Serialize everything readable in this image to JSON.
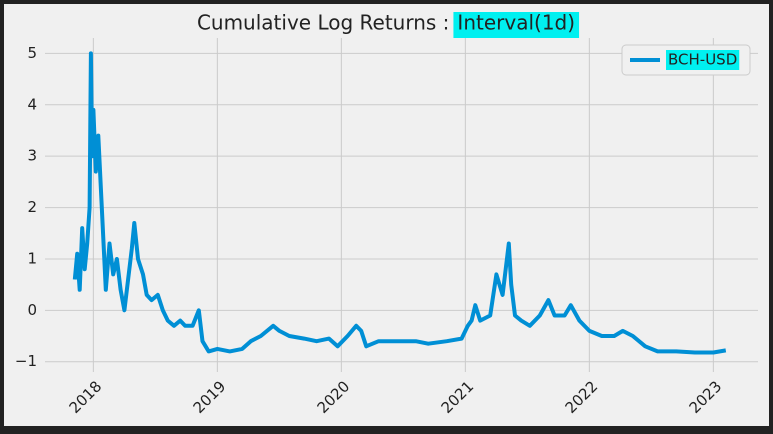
{
  "chart_data": {
    "type": "line",
    "title": "Cumulative Log Returns :",
    "title_badge": "Interval(1d)",
    "badge_color": "#00f0f0",
    "legend_position": "upper right",
    "grid": true,
    "xlim": [
      2017.61,
      2023.36
    ],
    "ylim": [
      -1.2,
      5.3
    ],
    "xticks": [
      2018,
      2019,
      2020,
      2021,
      2022,
      2023
    ],
    "yticks": [
      {
        "value": -1,
        "label": "−1"
      },
      0,
      1,
      2,
      3,
      4,
      5
    ],
    "x": [
      2017.85,
      2017.87,
      2017.89,
      2017.91,
      2017.93,
      2017.95,
      2017.97,
      2017.98,
      2017.99,
      2018.0,
      2018.02,
      2018.04,
      2018.06,
      2018.08,
      2018.1,
      2018.13,
      2018.16,
      2018.19,
      2018.22,
      2018.25,
      2018.28,
      2018.31,
      2018.33,
      2018.36,
      2018.4,
      2018.43,
      2018.47,
      2018.52,
      2018.56,
      2018.6,
      2018.65,
      2018.7,
      2018.74,
      2018.8,
      2018.85,
      2018.88,
      2018.93,
      2019.0,
      2019.1,
      2019.2,
      2019.27,
      2019.35,
      2019.45,
      2019.5,
      2019.58,
      2019.7,
      2019.8,
      2019.9,
      2019.97,
      2020.05,
      2020.12,
      2020.16,
      2020.2,
      2020.3,
      2020.45,
      2020.6,
      2020.7,
      2020.85,
      2020.97,
      2021.02,
      2021.05,
      2021.08,
      2021.12,
      2021.2,
      2021.25,
      2021.3,
      2021.35,
      2021.37,
      2021.4,
      2021.45,
      2021.52,
      2021.6,
      2021.67,
      2021.72,
      2021.8,
      2021.85,
      2021.92,
      2022.0,
      2022.1,
      2022.2,
      2022.27,
      2022.35,
      2022.45,
      2022.55,
      2022.7,
      2022.85,
      2023.0,
      2023.1
    ],
    "series": [
      {
        "name": "BCH-USD",
        "color": "#008fd5",
        "values": [
          0.6,
          1.1,
          0.4,
          1.6,
          0.8,
          1.3,
          2.0,
          5.0,
          3.0,
          3.9,
          2.7,
          3.4,
          2.4,
          1.4,
          0.4,
          1.3,
          0.7,
          1.0,
          0.4,
          0.0,
          0.6,
          1.2,
          1.7,
          1.0,
          0.7,
          0.3,
          0.2,
          0.3,
          0.0,
          -0.2,
          -0.3,
          -0.2,
          -0.3,
          -0.3,
          0.0,
          -0.6,
          -0.8,
          -0.75,
          -0.8,
          -0.75,
          -0.6,
          -0.5,
          -0.3,
          -0.4,
          -0.5,
          -0.55,
          -0.6,
          -0.55,
          -0.7,
          -0.5,
          -0.3,
          -0.4,
          -0.7,
          -0.6,
          -0.6,
          -0.6,
          -0.65,
          -0.6,
          -0.55,
          -0.3,
          -0.2,
          0.1,
          -0.2,
          -0.1,
          0.7,
          0.3,
          1.3,
          0.5,
          -0.1,
          -0.2,
          -0.3,
          -0.1,
          0.2,
          -0.1,
          -0.1,
          0.1,
          -0.2,
          -0.4,
          -0.5,
          -0.5,
          -0.4,
          -0.5,
          -0.7,
          -0.8,
          -0.8,
          -0.82,
          -0.82,
          -0.78
        ]
      }
    ]
  }
}
